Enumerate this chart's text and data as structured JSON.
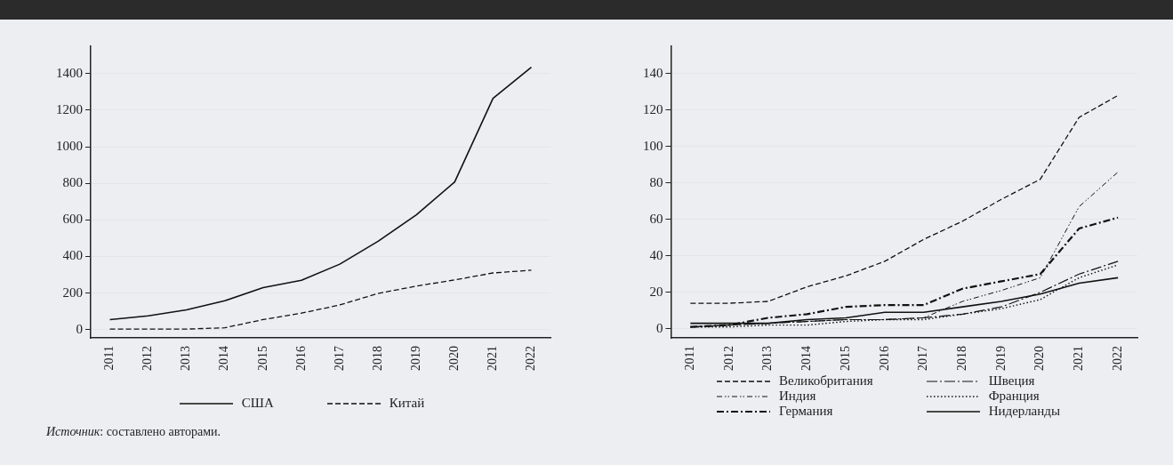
{
  "chart_data": [
    {
      "type": "line",
      "categories": [
        "2011",
        "2012",
        "2013",
        "2014",
        "2015",
        "2016",
        "2017",
        "2018",
        "2019",
        "2020",
        "2021",
        "2022"
      ],
      "series": [
        {
          "name": "США",
          "color": "#111111",
          "line_style": "solid",
          "values": [
            55,
            75,
            108,
            158,
            230,
            270,
            358,
            483,
            628,
            808,
            1265,
            1435
          ]
        },
        {
          "name": "Китай",
          "color": "#111111",
          "line_style": "dashed",
          "values": [
            3,
            3,
            3,
            10,
            55,
            90,
            135,
            198,
            238,
            272,
            310,
            325
          ]
        }
      ],
      "ylim": [
        -45,
        1550
      ],
      "yticks": [
        0,
        200,
        400,
        600,
        800,
        1000,
        1200,
        1400
      ],
      "grid": "y",
      "legend": "bottom",
      "marker": "none",
      "annotations": [
        "Источник: составлено авторами."
      ]
    },
    {
      "type": "line",
      "categories": [
        "2011",
        "2012",
        "2013",
        "2014",
        "2015",
        "2016",
        "2017",
        "2018",
        "2019",
        "2020",
        "2021",
        "2022"
      ],
      "series": [
        {
          "name": "Великобритания",
          "color": "#111111",
          "line_style": "dashed",
          "values": [
            14,
            14,
            15,
            23,
            29,
            37,
            49,
            59,
            71,
            82,
            116,
            128
          ]
        },
        {
          "name": "Индия",
          "color": "#111111",
          "line_style": "dashdotdot",
          "values": [
            1,
            2,
            3,
            4,
            5,
            5,
            6,
            15,
            21,
            28,
            67,
            86
          ]
        },
        {
          "name": "Германия",
          "color": "#111111",
          "line_style": "dashdot",
          "values": [
            1,
            2,
            6,
            8,
            12,
            13,
            13,
            22,
            26,
            30,
            55,
            61
          ]
        },
        {
          "name": "Швеция",
          "color": "#111111",
          "line_style": "longdashdot",
          "values": [
            1,
            2,
            3,
            4,
            5,
            5,
            6,
            8,
            12,
            20,
            30,
            37
          ]
        },
        {
          "name": "Франция",
          "color": "#111111",
          "line_style": "dotted",
          "values": [
            1,
            1,
            2,
            2,
            4,
            5,
            5,
            8,
            11,
            16,
            28,
            35
          ]
        },
        {
          "name": "Нидерланды",
          "color": "#111111",
          "line_style": "solid",
          "values": [
            3,
            3,
            3,
            5,
            6,
            9,
            9,
            12,
            15,
            19,
            25,
            28
          ]
        }
      ],
      "ylim": [
        -5,
        155
      ],
      "yticks": [
        0,
        20,
        40,
        60,
        80,
        100,
        120,
        140
      ],
      "grid": "y",
      "legend": "bottom",
      "marker": "none"
    }
  ]
}
